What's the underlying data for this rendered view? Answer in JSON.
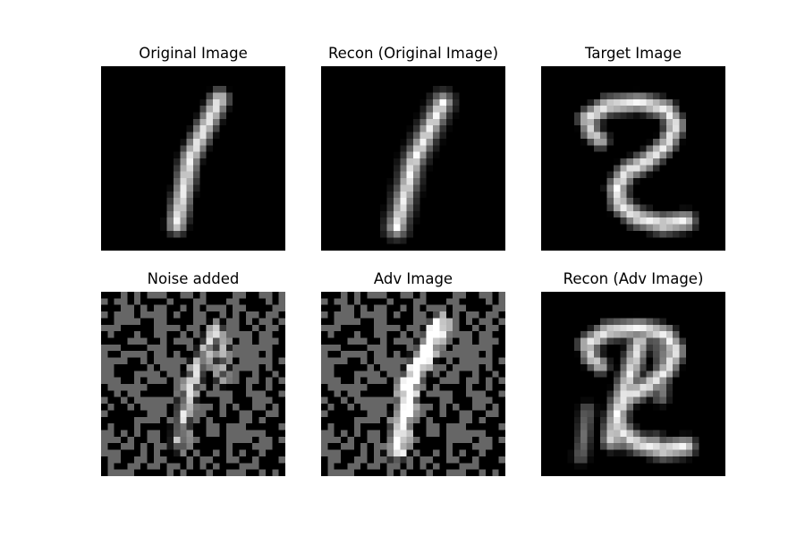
{
  "figure": {
    "background": "#ffffff",
    "panels": [
      {
        "id": "original",
        "title": "Original Image",
        "kind": "digit",
        "digit": "1"
      },
      {
        "id": "recon-original",
        "title": "Recon (Original Image)",
        "kind": "digit",
        "digit": "1"
      },
      {
        "id": "target",
        "title": "Target Image",
        "kind": "digit",
        "digit": "2"
      },
      {
        "id": "noise",
        "title": "Noise added",
        "kind": "noise"
      },
      {
        "id": "adv",
        "title": "Adv Image",
        "kind": "noise+digit",
        "digit": "1"
      },
      {
        "id": "recon-adv",
        "title": "Recon (Adv Image)",
        "kind": "digit",
        "digit": "2"
      }
    ],
    "colors": {
      "image_bg": "#000000",
      "noise_gray": "#666666",
      "stroke_white": "#ffffff"
    }
  }
}
